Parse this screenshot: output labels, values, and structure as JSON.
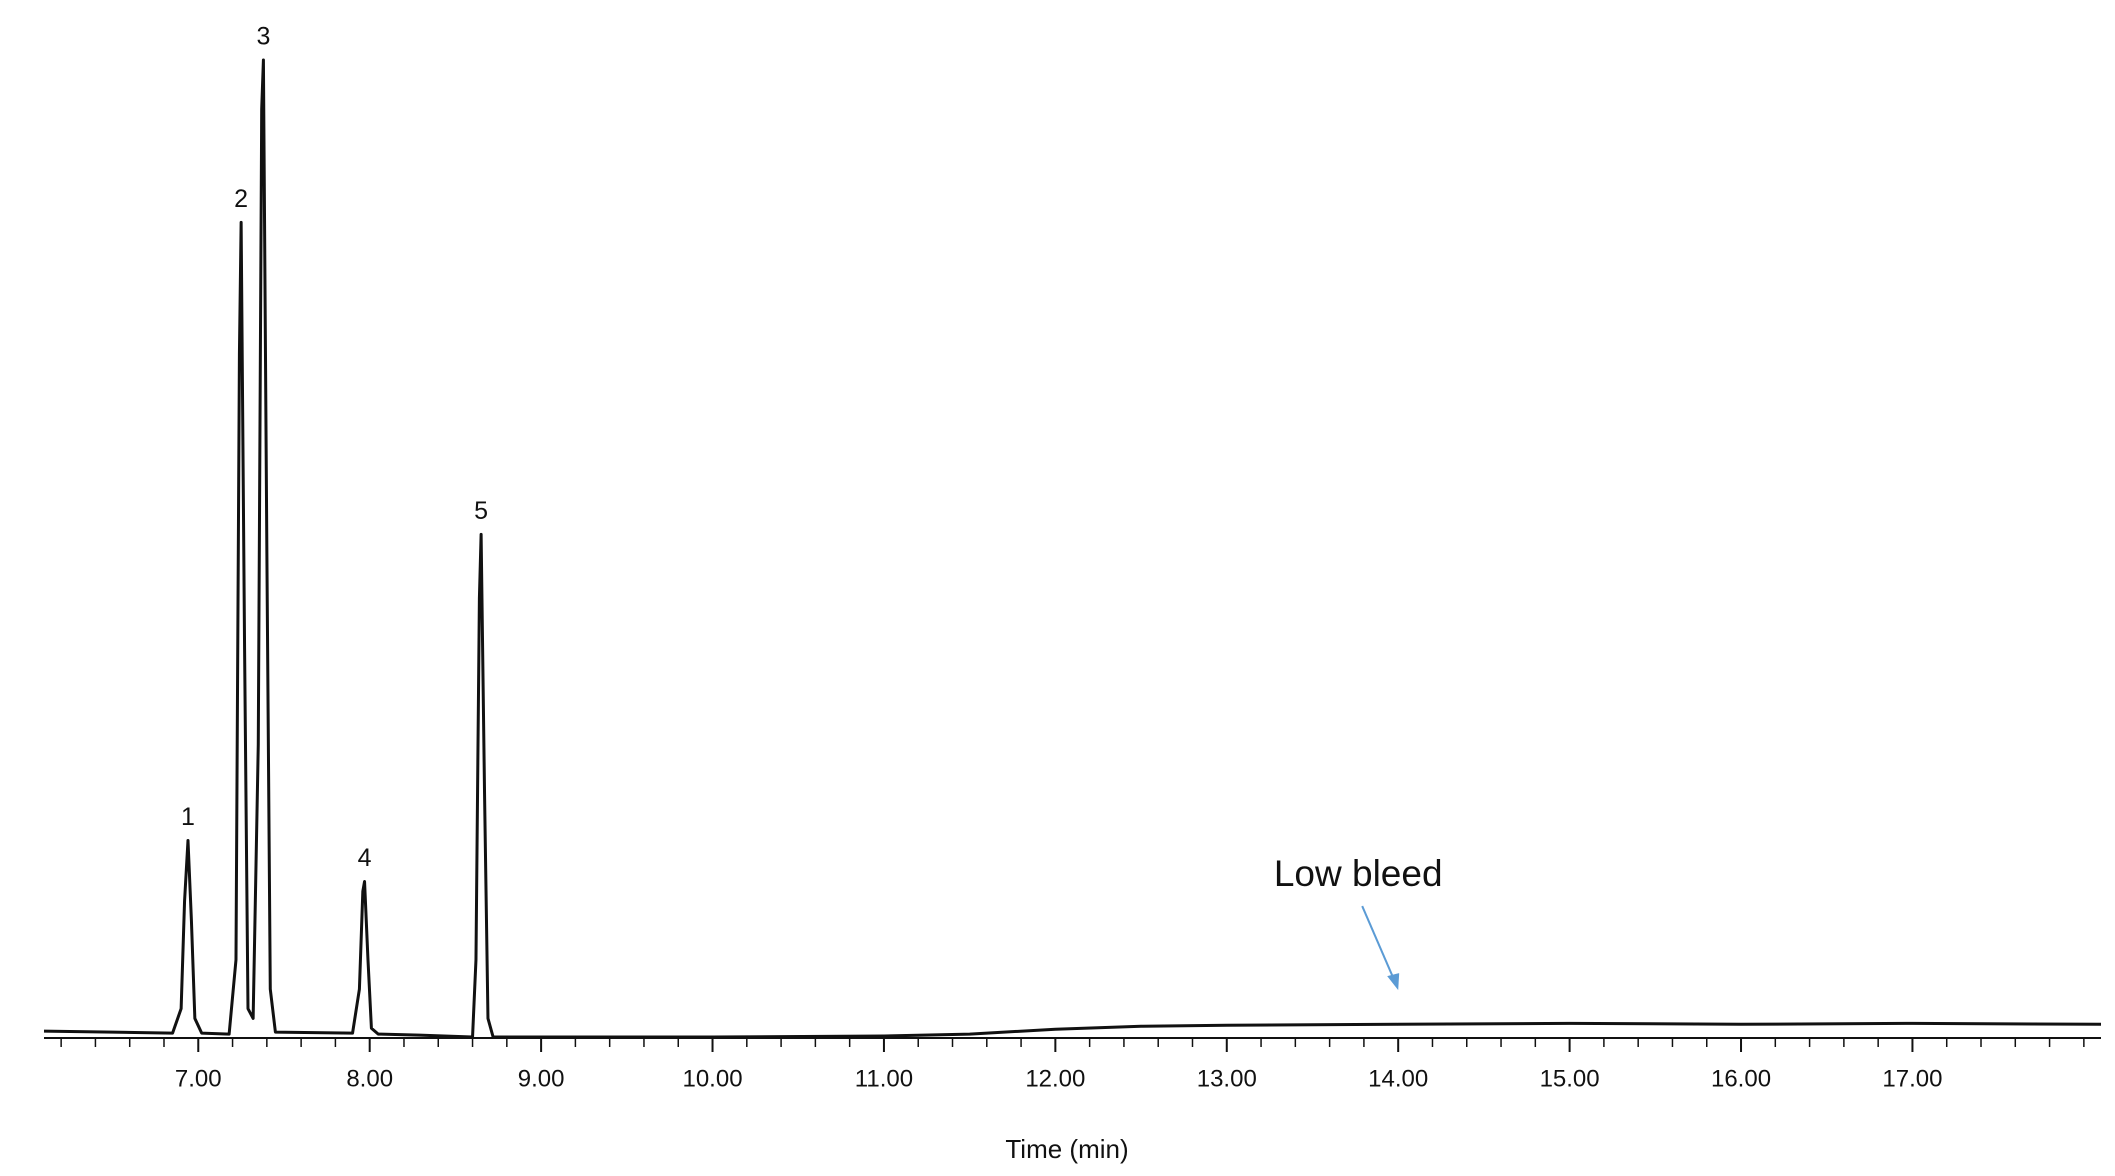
{
  "chart_data": {
    "type": "line",
    "x_label": "Time (min)",
    "xlim": [
      6.1,
      18.1
    ],
    "ylim": [
      0,
      100
    ],
    "xticks": [
      {
        "value": 7,
        "label": "7.00"
      },
      {
        "value": 8,
        "label": "8.00"
      },
      {
        "value": 9,
        "label": "9.00"
      },
      {
        "value": 10,
        "label": "10.00"
      },
      {
        "value": 11,
        "label": "11.00"
      },
      {
        "value": 12,
        "label": "12.00"
      },
      {
        "value": 13,
        "label": "13.00"
      },
      {
        "value": 14,
        "label": "14.00"
      },
      {
        "value": 15,
        "label": "15.00"
      },
      {
        "value": 16,
        "label": "16.00"
      },
      {
        "value": 17,
        "label": "17.00"
      }
    ],
    "xminorticks": [
      6.2,
      6.4,
      6.6,
      6.8,
      7.2,
      7.4,
      7.6,
      7.8,
      8.2,
      8.4,
      8.6,
      8.8,
      9.2,
      9.4,
      9.6,
      9.8,
      10.2,
      10.4,
      10.6,
      10.8,
      11.2,
      11.4,
      11.6,
      11.8,
      12.2,
      12.4,
      12.6,
      12.8,
      13.2,
      13.4,
      13.6,
      13.8,
      14.2,
      14.4,
      14.6,
      14.8,
      15.2,
      15.4,
      15.6,
      15.8,
      16.2,
      16.4,
      16.6,
      16.8,
      17.2,
      17.4,
      17.6,
      17.8,
      18.0
    ],
    "series": [
      {
        "color": "#111111",
        "x": [
          6.1,
          6.5,
          6.85,
          6.9,
          6.92,
          6.94,
          6.96,
          6.98,
          7.02,
          7.18,
          7.22,
          7.24,
          7.25,
          7.27,
          7.29,
          7.32,
          7.35,
          7.37,
          7.38,
          7.4,
          7.42,
          7.45,
          7.9,
          7.94,
          7.96,
          7.97,
          7.99,
          8.01,
          8.05,
          8.29,
          8.6,
          8.62,
          8.64,
          8.65,
          8.67,
          8.69,
          8.72,
          10.0,
          11.0,
          11.5,
          12.0,
          12.5,
          13.0,
          14.0,
          15.0,
          16.0,
          17.0,
          18.1
        ],
        "values": [
          0.7,
          0.6,
          0.5,
          3,
          14,
          20.2,
          12,
          2,
          0.5,
          0.4,
          8,
          70,
          83.4,
          40,
          3,
          2,
          30,
          95,
          100,
          50,
          5,
          0.6,
          0.5,
          5,
          15,
          16,
          8,
          1,
          0.4,
          0.3,
          0.1,
          8,
          45,
          51.5,
          25,
          2,
          0.1,
          0.1,
          0.2,
          0.4,
          0.9,
          1.2,
          1.3,
          1.4,
          1.5,
          1.4,
          1.5,
          1.4
        ]
      }
    ],
    "peaks": [
      {
        "label": "1",
        "x": 6.94,
        "y": 20.2
      },
      {
        "label": "2",
        "x": 7.25,
        "y": 83.4
      },
      {
        "label": "3",
        "x": 7.38,
        "y": 100
      },
      {
        "label": "4",
        "x": 7.97,
        "y": 16
      },
      {
        "label": "5",
        "x": 8.65,
        "y": 51.5
      }
    ],
    "annotation": {
      "text": "Low bleed",
      "x": 14.0,
      "y": 4.9,
      "color": "#5b9bd5"
    }
  }
}
